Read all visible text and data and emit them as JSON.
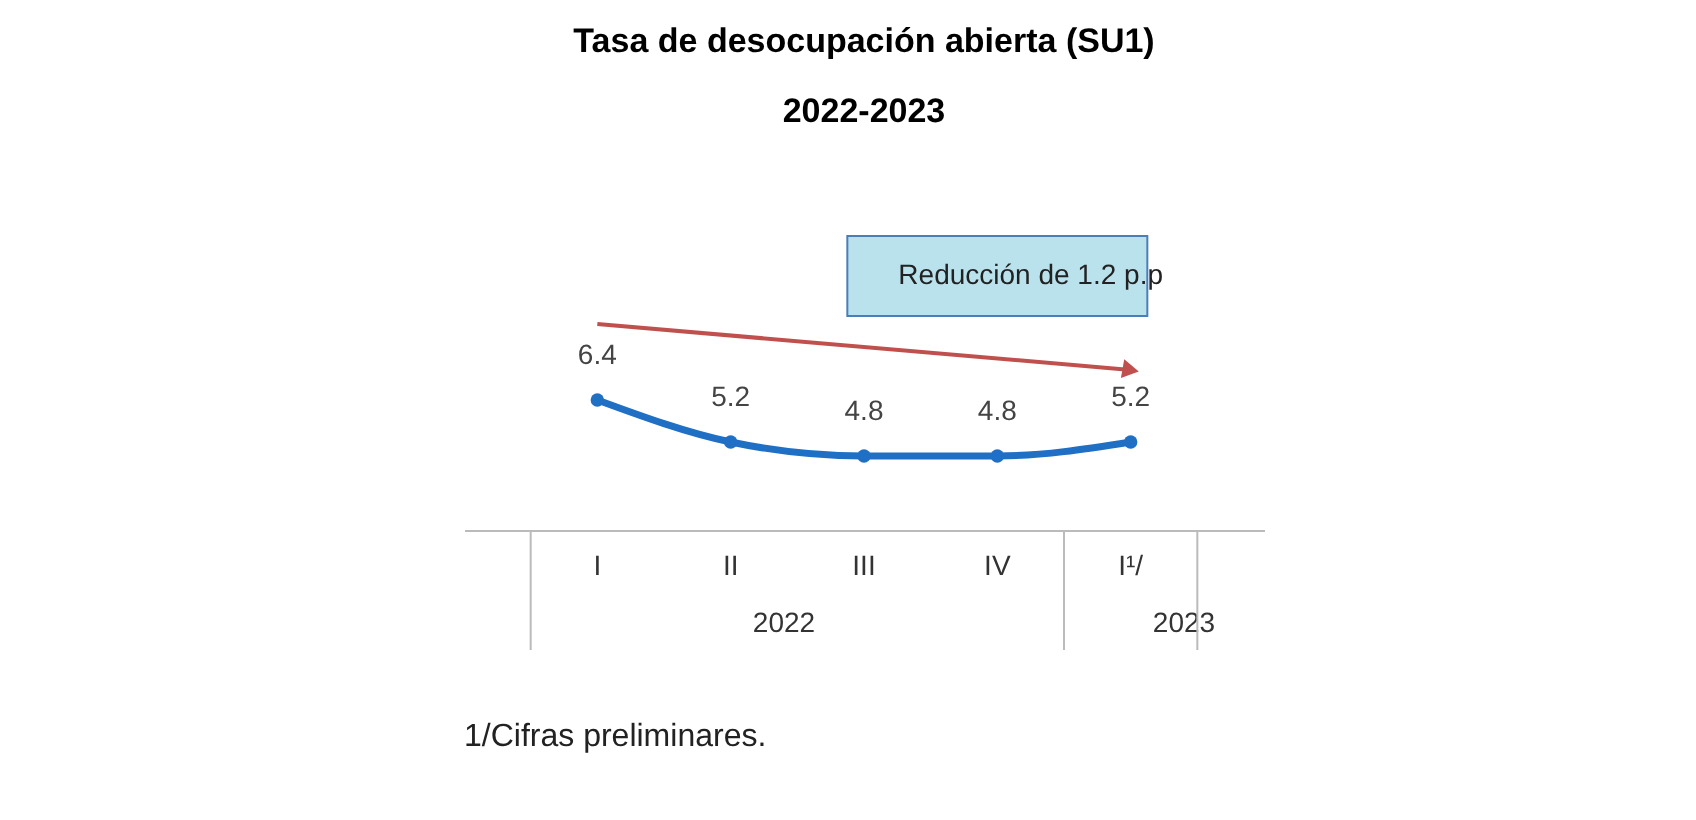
{
  "chart_data": {
    "type": "line",
    "title": "Tasa de desocupación abierta (SU1)",
    "subtitle": "2022-2023",
    "categories": [
      "I",
      "II",
      "III",
      "IV",
      "I¹/"
    ],
    "series": [
      {
        "color": "#1f6fc5",
        "values": [
          6.4,
          5.2,
          4.8,
          4.8,
          5.2
        ]
      }
    ],
    "data_labels": true,
    "marker": "circle",
    "grid": false,
    "annotations": [
      "Reducción de 1.2 p.p",
      "2022",
      "2023",
      "1/Cifras preliminares."
    ]
  }
}
